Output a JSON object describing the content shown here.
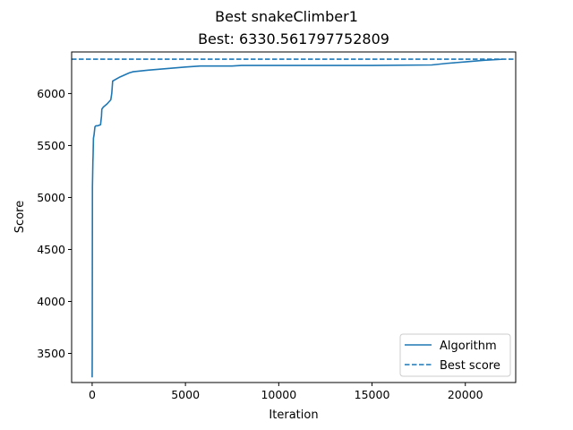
{
  "chart_data": {
    "type": "line",
    "suptitle": "Best snakeClimber1",
    "title": "Best: 6330.561797752809",
    "xlabel": "Iteration",
    "ylabel": "Score",
    "xlim": [
      -1100,
      22700
    ],
    "ylim": [
      3220,
      6400
    ],
    "xticks": [
      0,
      5000,
      10000,
      15000,
      20000
    ],
    "yticks": [
      3500,
      4000,
      4500,
      5000,
      5500,
      6000
    ],
    "grid": false,
    "legend_position": "lower-right",
    "series": [
      {
        "name": "Algorithm",
        "style": "solid",
        "color": "#1f77b4",
        "x": [
          0,
          5,
          10,
          15,
          20,
          30,
          40,
          50,
          70,
          100,
          150,
          200,
          300,
          450,
          500,
          520,
          600,
          800,
          1000,
          1050,
          1100,
          1500,
          2000,
          2200,
          3000,
          4000,
          5000,
          5800,
          7500,
          8000,
          10000,
          15000,
          18200,
          19000,
          20000,
          21000,
          22000
        ],
        "y": [
          3270,
          3500,
          4300,
          5100,
          5150,
          5250,
          5350,
          5400,
          5570,
          5600,
          5680,
          5690,
          5690,
          5700,
          5780,
          5850,
          5870,
          5900,
          5940,
          6000,
          6120,
          6160,
          6200,
          6210,
          6225,
          6240,
          6255,
          6265,
          6265,
          6270,
          6270,
          6270,
          6275,
          6290,
          6305,
          6320,
          6330
        ]
      },
      {
        "name": "Best score",
        "style": "dashed",
        "color": "#1f77b4",
        "y_constant": 6330.561797752809
      }
    ]
  }
}
